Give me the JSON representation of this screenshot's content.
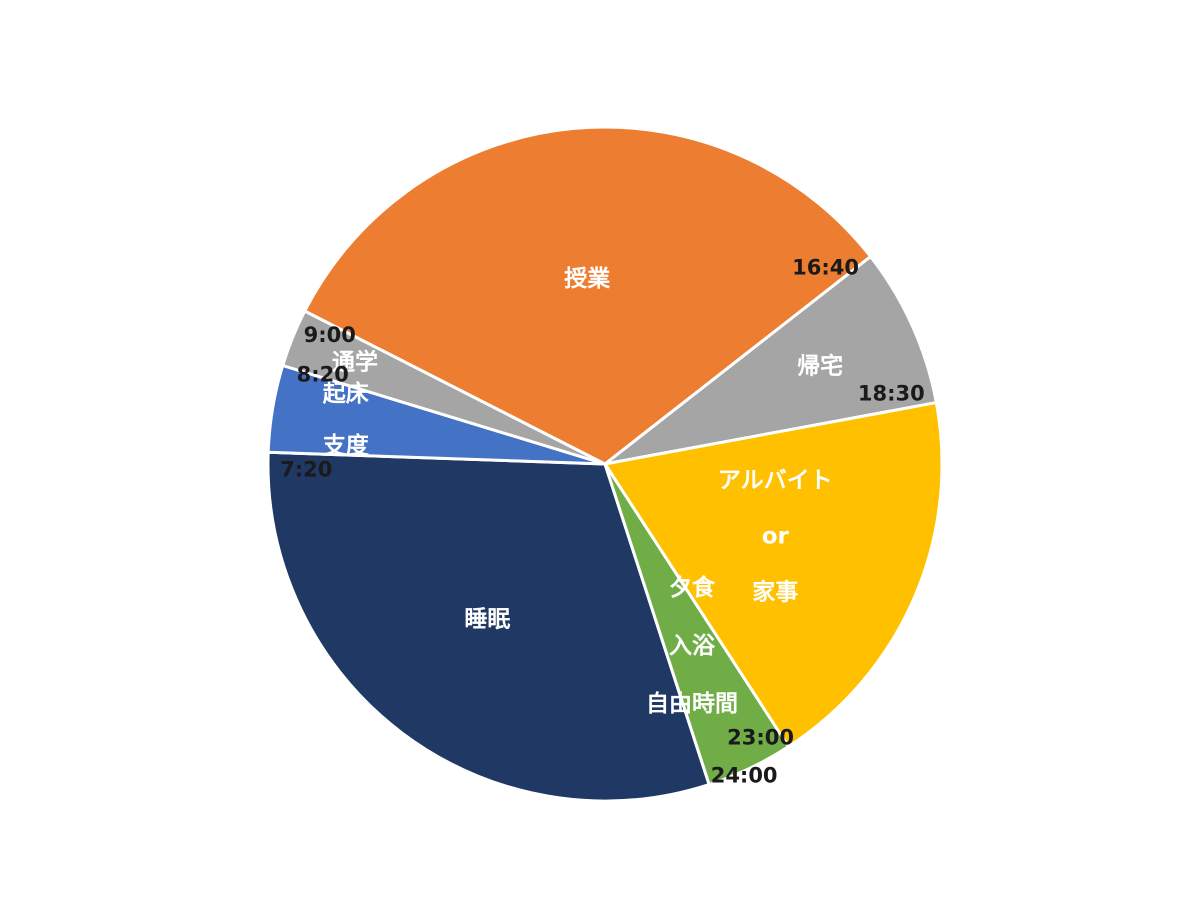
{
  "chart_data": {
    "type": "pie",
    "title": "",
    "unit": "hours",
    "start_angle_deg": 162,
    "slices": [
      {
        "label_lines": [
          "睡眠"
        ],
        "value": 7.333,
        "from": "24:00",
        "to": "7:20",
        "color": "#203864"
      },
      {
        "label_lines": [
          "起床",
          "支度"
        ],
        "value": 1.0,
        "from": "7:20",
        "to": "8:20",
        "color": "#4472C4"
      },
      {
        "label_lines": [
          "通学"
        ],
        "value": 0.667,
        "from": "8:20",
        "to": "9:00",
        "color": "#A5A5A5"
      },
      {
        "label_lines": [
          "授業"
        ],
        "value": 7.667,
        "from": "9:00",
        "to": "16:40",
        "color": "#ED7D31"
      },
      {
        "label_lines": [
          "帰宅"
        ],
        "value": 1.833,
        "from": "16:40",
        "to": "18:30",
        "color": "#A5A5A5"
      },
      {
        "label_lines": [
          "アルバイト",
          "or",
          "家事"
        ],
        "value": 4.5,
        "from": "18:30",
        "to": "23:00",
        "color": "#FFC000"
      },
      {
        "label_lines": [
          "夕食",
          "入浴",
          "自由時間"
        ],
        "value": 1.0,
        "from": "23:00",
        "to": "24:00",
        "color": "#70AD47"
      }
    ],
    "time_labels": [
      "23:00",
      "24:00",
      "7:20",
      "8:20",
      "9:00",
      "16:40",
      "18:30"
    ]
  }
}
